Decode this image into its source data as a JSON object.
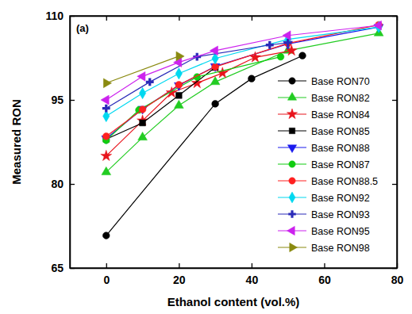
{
  "chart_data": {
    "type": "line",
    "title": "(a)",
    "x_label": "Ethanol content (vol.%)",
    "y_label": "Measured RON",
    "xlim": [
      -10,
      80
    ],
    "xticks": [
      0,
      20,
      40,
      60,
      80
    ],
    "ylim": [
      65,
      110
    ],
    "yticks": [
      65,
      80,
      95,
      110
    ],
    "legend": "right",
    "series": [
      {
        "name": "Base RON70",
        "color": "#000000",
        "marker": "circle",
        "x": [
          0,
          30,
          40,
          54
        ],
        "values": [
          70.8,
          94.3,
          98.8,
          102.9
        ]
      },
      {
        "name": "Base RON82",
        "color": "#22cc22",
        "marker": "triangle",
        "x": [
          0,
          10,
          20,
          30,
          50,
          75
        ],
        "values": [
          82.1,
          88.3,
          94.0,
          98.2,
          103.8,
          106.9
        ]
      },
      {
        "name": "Base RON84",
        "color": "#e8141c",
        "marker": "star",
        "x": [
          0,
          10,
          18,
          25,
          32,
          41,
          51
        ],
        "values": [
          85.0,
          91.3,
          96.3,
          98.0,
          99.8,
          102.6,
          103.8
        ]
      },
      {
        "name": "Base RON85",
        "color": "#000000",
        "marker": "square",
        "x": [
          0,
          10,
          20,
          30
        ],
        "values": [
          88.0,
          90.9,
          95.8,
          100.8
        ]
      },
      {
        "name": "Base RON88",
        "color": "#1a1aee",
        "marker": "triangle-down",
        "x": [
          0,
          10,
          20,
          30,
          50,
          75
        ],
        "values": [
          88.1,
          93.4,
          97.6,
          101.0,
          105.0,
          108.0
        ]
      },
      {
        "name": "Base RON87",
        "color": "#11cc11",
        "marker": "hexagon",
        "x": [
          0,
          9,
          25,
          48
        ],
        "values": [
          87.8,
          93.2,
          99.1,
          102.7
        ]
      },
      {
        "name": "Base RON88.5",
        "color": "#ff2020",
        "marker": "circle",
        "x": [
          0,
          10,
          20,
          30,
          50,
          75
        ],
        "values": [
          88.5,
          93.3,
          97.7,
          100.9,
          105.1,
          108.4
        ]
      },
      {
        "name": "Base RON92",
        "color": "#00d8f0",
        "marker": "diamond",
        "x": [
          0,
          10,
          20,
          30,
          50,
          75
        ],
        "values": [
          92.1,
          96.2,
          99.7,
          102.4,
          105.8,
          108.0
        ]
      },
      {
        "name": "Base RON93",
        "color": "#2a2ab8",
        "marker": "plus",
        "x": [
          0,
          12,
          25,
          45,
          50
        ],
        "values": [
          93.5,
          98.2,
          102.7,
          104.8,
          105.2
        ]
      },
      {
        "name": "Base RON95",
        "color": "#cc22ee",
        "marker": "triangle-left",
        "x": [
          0,
          10,
          20,
          30,
          50,
          75
        ],
        "values": [
          95.0,
          99.2,
          101.7,
          103.8,
          106.5,
          108.3
        ]
      },
      {
        "name": "Base RON98",
        "color": "#8a8a10",
        "marker": "triangle-right",
        "x": [
          0,
          20
        ],
        "values": [
          98.0,
          102.8
        ]
      }
    ]
  }
}
